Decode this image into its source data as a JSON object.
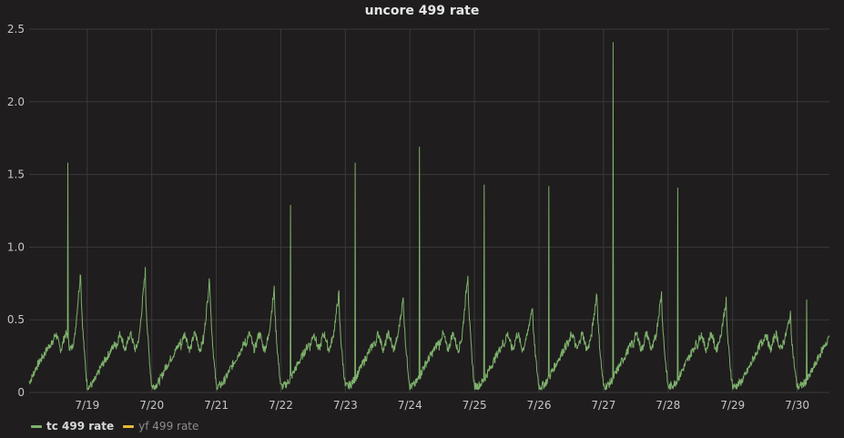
{
  "panel": {
    "title": "uncore 499 rate"
  },
  "legend": {
    "items": [
      {
        "label": "tc 499 rate",
        "color": "#7eb26d",
        "active": true
      },
      {
        "label": "yf 499 rate",
        "color": "#eab839",
        "active": false
      }
    ]
  },
  "chart_data": {
    "type": "line",
    "title": "uncore 499 rate",
    "xlabel": "",
    "ylabel": "",
    "ylim": [
      0,
      2.5
    ],
    "yticks": [
      "0",
      "0.5",
      "1.0",
      "1.5",
      "2.0",
      "2.5"
    ],
    "xticks": [
      "7/19",
      "7/20",
      "7/21",
      "7/22",
      "7/23",
      "7/24",
      "7/25",
      "7/26",
      "7/27",
      "7/28",
      "7/29",
      "7/30"
    ],
    "x_range_days": [
      18.1,
      30.5
    ],
    "grid": true,
    "legend_position": "bottom-left",
    "series": [
      {
        "name": "tc 499 rate",
        "color": "#7eb26d",
        "daily_peaks": [
          0.84,
          0.84,
          0.8,
          0.72,
          0.68,
          0.66,
          0.83,
          0.6,
          0.7,
          0.69,
          0.63,
          0.54
        ],
        "spikes": [
          {
            "day": 18.7,
            "value": 1.58
          },
          {
            "day": 22.15,
            "value": 1.29
          },
          {
            "day": 23.15,
            "value": 1.58
          },
          {
            "day": 24.15,
            "value": 1.69
          },
          {
            "day": 25.15,
            "value": 1.43
          },
          {
            "day": 26.15,
            "value": 1.42
          },
          {
            "day": 27.15,
            "value": 2.41
          },
          {
            "day": 28.15,
            "value": 1.41
          },
          {
            "day": 30.15,
            "value": 0.64
          }
        ],
        "daily_min": 0.04,
        "midday_level": 0.35
      },
      {
        "name": "yf 499 rate",
        "color": "#eab839",
        "values": []
      }
    ]
  }
}
